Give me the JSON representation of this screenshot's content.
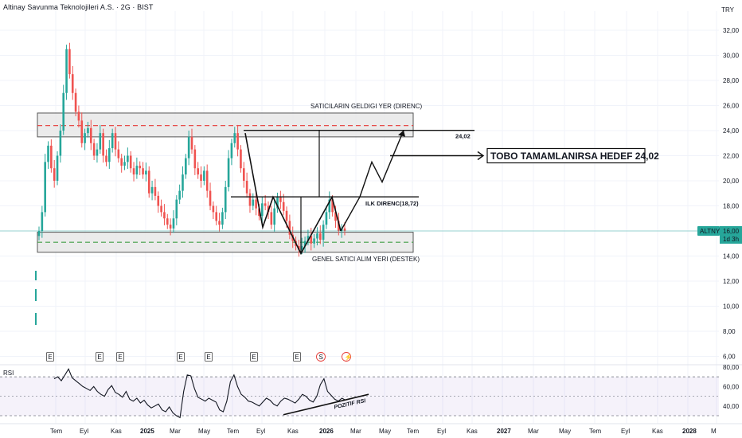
{
  "header": {
    "title": "Altinay Savunma Teknolojileri A.S. · 2G · BIST",
    "currency": "TRY"
  },
  "chart_data": {
    "type": "candlestick",
    "symbol": "ALTNY",
    "interval": "2G",
    "exchange": "BIST",
    "last_price": "16,00",
    "last_price_countdown": "1d 3h",
    "price_ticks": [
      "32,00",
      "30,00",
      "28,00",
      "26,00",
      "24,00",
      "22,00",
      "20,00",
      "18,00",
      "16,00",
      "14,00",
      "12,00",
      "10,00",
      "8,00",
      "6,00"
    ],
    "price_tick_values": [
      32,
      30,
      28,
      26,
      24,
      22,
      20,
      18,
      16,
      14,
      12,
      10,
      8,
      6
    ],
    "time_axis": [
      "Tem",
      "Eyl",
      "Kas",
      "2025",
      "Mar",
      "May",
      "Tem",
      "Eyl",
      "Kas",
      "2026",
      "Mar",
      "May",
      "Tem",
      "Eyl",
      "Kas",
      "2027",
      "Mar",
      "May",
      "Tem",
      "Eyl",
      "Kas",
      "2028",
      "M"
    ],
    "time_axis_bold": [
      "2025",
      "2026",
      "2027",
      "2028"
    ],
    "close_series": [
      16.0,
      17.5,
      21.5,
      22.8,
      21.0,
      20.0,
      22.0,
      24.0,
      27.0,
      30.5,
      28.5,
      27.0,
      25.5,
      24.8,
      23.0,
      23.8,
      24.2,
      23.0,
      22.0,
      22.5,
      23.8,
      22.0,
      21.5,
      22.6,
      23.8,
      22.5,
      21.8,
      21.2,
      21.5,
      22.0,
      21.0,
      20.5,
      21.2,
      21.0,
      20.5,
      20.8,
      19.0,
      19.5,
      18.8,
      18.0,
      17.5,
      17.0,
      16.5,
      16.2,
      17.0,
      18.5,
      19.2,
      20.5,
      21.8,
      23.5,
      22.5,
      21.0,
      20.5,
      20.0,
      20.8,
      19.2,
      18.0,
      17.5,
      16.8,
      16.5,
      17.5,
      19.5,
      21.8,
      23.0,
      23.8,
      22.5,
      21.0,
      20.0,
      19.0,
      18.0,
      18.5,
      17.8,
      17.2,
      18.2,
      18.0,
      17.5,
      16.5,
      17.8,
      18.7,
      18.3,
      17.6,
      16.8,
      15.7,
      15.2,
      14.8,
      14.5,
      14.8,
      15.2,
      15.6,
      15.0,
      15.4,
      15.8,
      15.3,
      16.5,
      17.5,
      18.5,
      17.5,
      16.8,
      16.0,
      16.2,
      16.0
    ],
    "rsi_series": [
      68,
      70,
      66,
      72,
      78,
      69,
      66,
      63,
      60,
      58,
      56,
      60,
      55,
      52,
      50,
      57,
      61,
      54,
      52,
      49,
      55,
      47,
      45,
      48,
      43,
      46,
      41,
      38,
      40,
      42,
      36,
      34,
      39,
      33,
      30,
      28,
      55,
      72,
      71,
      58,
      49,
      47,
      45,
      48,
      46,
      44,
      36,
      34,
      45,
      65,
      72,
      60,
      52,
      49,
      45,
      44,
      42,
      40,
      44,
      48,
      46,
      42,
      40,
      45,
      48,
      47,
      45,
      43,
      47,
      52,
      50,
      46,
      44,
      50,
      62,
      68,
      55,
      51,
      47,
      45,
      48,
      46
    ],
    "rsi_ticks": [
      "80,00",
      "60,00",
      "40,00"
    ],
    "rsi_tick_values": [
      80,
      60,
      40
    ],
    "rsi_band": [
      30,
      70
    ],
    "indicators": {
      "rsi_label": "RSI"
    },
    "event_markers": [
      "E",
      "E",
      "E",
      "E",
      "E",
      "E",
      "E",
      "S",
      "⚡"
    ],
    "zones": [
      {
        "name": "resistance",
        "label": "SATICILARIN GELDIGI YER (DIRENC)",
        "low": 23.5,
        "high": 25.4,
        "mid": 24.4,
        "color": "#e53935"
      },
      {
        "name": "support",
        "label": "GENEL SATICI ALIM YERI (DESTEK)",
        "low": 14.3,
        "high": 15.9,
        "mid": 15.1,
        "color": "#43a047"
      }
    ],
    "levels": {
      "target_label": "24,02",
      "first_resistance_label": "ILK DIRENC(18,72)"
    },
    "target_callout": "TOBO TAMAMLANIRSA HEDEF 24,02",
    "rsi_note": "POZITIF RSI",
    "colors": {
      "up": "#26a69a",
      "down": "#ef5350",
      "rsi": "#131722",
      "price_line": "#26a69a",
      "last_price_bg": "#26a69a"
    }
  }
}
